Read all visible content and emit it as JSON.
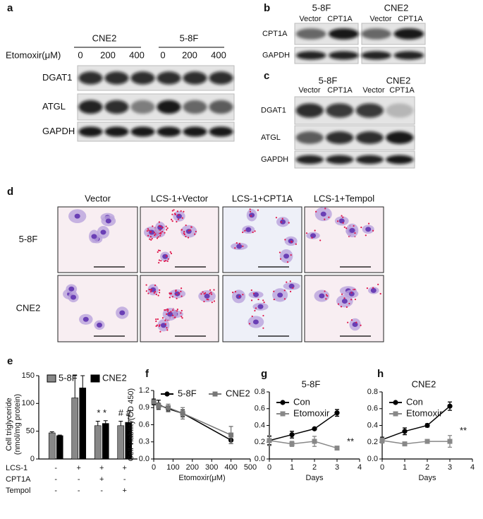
{
  "panel_labels": [
    "a",
    "b",
    "c",
    "d",
    "e",
    "f",
    "g",
    "h"
  ],
  "panel_a": {
    "cell_lines": [
      "CNE2",
      "5-8F"
    ],
    "dose_label": "Etomoxir(μM)",
    "doses": [
      0,
      200,
      400,
      0,
      200,
      400
    ],
    "proteins": [
      "DGAT1",
      "ATGL",
      "GAPDH"
    ]
  },
  "panel_b": {
    "cell_lines": [
      "5-8F",
      "CNE2"
    ],
    "conditions": [
      "Vector",
      "CPT1A",
      "Vector",
      "CPT1A"
    ],
    "proteins": [
      "CPT1A",
      "GAPDH"
    ]
  },
  "panel_c": {
    "cell_lines": [
      "5-8F",
      "CNE2"
    ],
    "conditions": [
      "Vector",
      "CPT1A",
      "Vector",
      "CPT1A"
    ],
    "proteins": [
      "DGAT1",
      "ATGL",
      "GAPDH"
    ]
  },
  "panel_d": {
    "conditions": [
      "Vector",
      "LCS-1+Vector",
      "LCS-1+CPT1A",
      "LCS-1+Tempol"
    ],
    "cell_lines": [
      "5-8F",
      "CNE2"
    ]
  },
  "chart_data": [
    {
      "type": "bar",
      "ylabel": [
        "Cell triglyceride",
        "(nmol/mg protein)"
      ],
      "categories": [
        null,
        null,
        null,
        null
      ],
      "series": [
        {
          "name": "5-8F",
          "color": "#888888",
          "values": [
            47,
            110,
            60,
            60
          ],
          "errors": [
            2,
            40,
            8,
            8
          ]
        },
        {
          "name": "CNE2",
          "color": "#000000",
          "values": [
            42,
            128,
            64,
            66
          ],
          "errors": [
            1,
            22,
            5,
            12
          ]
        }
      ],
      "ylim": [
        0,
        150
      ],
      "yticks": [
        0,
        50,
        100,
        150
      ],
      "annotations": [
        "* *",
        "# #"
      ],
      "treatments": [
        {
          "label": "LCS-1",
          "signs": [
            "-",
            "+",
            "+",
            "+"
          ]
        },
        {
          "label": "CPT1A",
          "signs": [
            "-",
            "-",
            "+",
            "-"
          ]
        },
        {
          "label": "Tempol",
          "signs": [
            "-",
            "-",
            "-",
            "+"
          ]
        }
      ]
    },
    {
      "type": "line",
      "ylabel": "Cell viability(OD 450)",
      "xlabel": "Etomoxir(μM)",
      "x": [
        0,
        25,
        75,
        150,
        400
      ],
      "series": [
        {
          "name": "5-8F",
          "color": "#000000",
          "marker": "circle",
          "values": [
            1.0,
            0.95,
            0.88,
            0.8,
            0.33
          ],
          "errors": [
            0.05,
            0.08,
            0.05,
            0.06,
            0.06
          ]
        },
        {
          "name": "CNE2",
          "color": "#777777",
          "marker": "square",
          "values": [
            1.0,
            0.93,
            0.9,
            0.8,
            0.42
          ],
          "errors": [
            0.03,
            0.05,
            0.06,
            0.1,
            0.15
          ]
        }
      ],
      "xlim": [
        0,
        500
      ],
      "xticks": [
        0,
        100,
        200,
        300,
        400,
        500
      ],
      "ylim": [
        0,
        1.2
      ],
      "yticks": [
        {
          "value": 0,
          "label": "0.0"
        },
        0.3,
        0.6,
        0.9,
        1.2
      ]
    },
    {
      "type": "line",
      "title": "5-8F",
      "xlabel": "Days",
      "x": [
        0,
        1,
        2,
        3
      ],
      "series": [
        {
          "name": "Con",
          "color": "#000000",
          "marker": "circle",
          "values": [
            0.22,
            0.29,
            0.36,
            0.55
          ],
          "errors": [
            0.05,
            0.04,
            0.01,
            0.04
          ]
        },
        {
          "name": "Etomoxir",
          "color": "#888888",
          "marker": "square",
          "values": [
            0.22,
            0.18,
            0.21,
            0.13
          ],
          "errors": [
            0.06,
            0.03,
            0.06,
            0.02
          ]
        }
      ],
      "xlim": [
        0,
        4
      ],
      "xticks": [
        0,
        1,
        2,
        3,
        4
      ],
      "ylim": [
        0,
        0.8
      ],
      "yticks": [
        {
          "value": 0,
          "label": "0.0"
        },
        0.2,
        0.4,
        0.6,
        0.8
      ],
      "annotations": [
        "**"
      ]
    },
    {
      "type": "line",
      "title": "CNE2",
      "xlabel": "Days",
      "x": [
        0,
        1,
        2,
        3
      ],
      "series": [
        {
          "name": "Con",
          "color": "#000000",
          "marker": "circle",
          "values": [
            0.23,
            0.33,
            0.4,
            0.63
          ],
          "errors": [
            0.03,
            0.04,
            0.02,
            0.05
          ]
        },
        {
          "name": "Etomoxir",
          "color": "#888888",
          "marker": "square",
          "values": [
            0.22,
            0.18,
            0.21,
            0.21
          ],
          "errors": [
            0.03,
            0.01,
            0.01,
            0.07
          ]
        }
      ],
      "xlim": [
        0,
        4
      ],
      "xticks": [
        0,
        1,
        2,
        3,
        4
      ],
      "ylim": [
        0,
        0.8
      ],
      "yticks": [
        {
          "value": 0,
          "label": "0.0"
        },
        0.2,
        0.4,
        0.6,
        0.8
      ],
      "annotations": [
        "**"
      ]
    }
  ]
}
